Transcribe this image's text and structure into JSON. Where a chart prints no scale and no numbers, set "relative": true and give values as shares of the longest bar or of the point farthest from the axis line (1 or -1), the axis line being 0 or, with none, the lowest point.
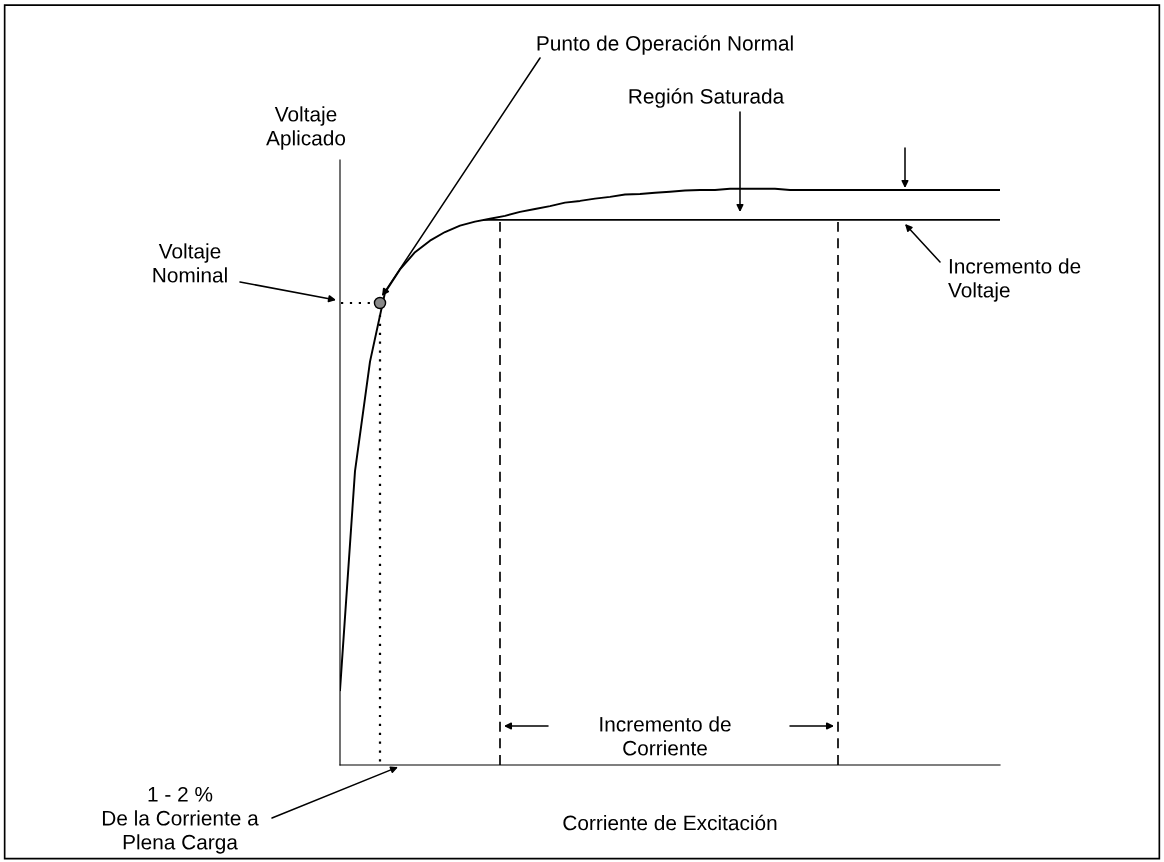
{
  "chart_data": {
    "type": "line",
    "relative": true,
    "color": "#000000",
    "categories": [
      null,
      null,
      null,
      null,
      null,
      null,
      null,
      null,
      null,
      null,
      null,
      null,
      null,
      null,
      null,
      null,
      null,
      null,
      null,
      null,
      null,
      null,
      null,
      null,
      null,
      null,
      null,
      null,
      null,
      null,
      null,
      null,
      null,
      null,
      null,
      null,
      null,
      null,
      null,
      null,
      null,
      null,
      null,
      null,
      null
    ],
    "values": [
      0.13,
      0.51,
      0.7,
      0.82,
      0.86,
      0.89,
      0.91,
      0.925,
      0.936,
      0.943,
      0.948,
      0.953,
      0.96,
      0.965,
      0.97,
      0.976,
      0.979,
      0.983,
      0.986,
      0.99,
      0.991,
      0.993,
      0.995,
      0.997,
      0.998,
      0.998,
      1,
      1,
      1,
      1,
      0.998,
      0.998,
      0.998,
      0.998,
      0.998,
      0.998,
      0.998,
      0.998,
      0.998,
      0.998,
      0.998,
      0.998,
      0.998,
      0.998,
      0.998
    ],
    "xlabel": "Corriente de Excitación",
    "ref_lines": [
      {
        "axis": "y",
        "value": 0.946,
        "line_style": "solid",
        "color": "#000000"
      }
    ],
    "annotations": [
      "Punto de Operación Normal",
      "Región Saturada",
      "Voltaje\nAplicado",
      "Voltaje\nNominal",
      "Incremento de\nVoltaje",
      "Incremento de\nCorriente",
      "1 - 2 %\nDe la Corriente a\nPlena Carga"
    ],
    "legend": false,
    "marker": "none",
    "line_style": "solid"
  }
}
